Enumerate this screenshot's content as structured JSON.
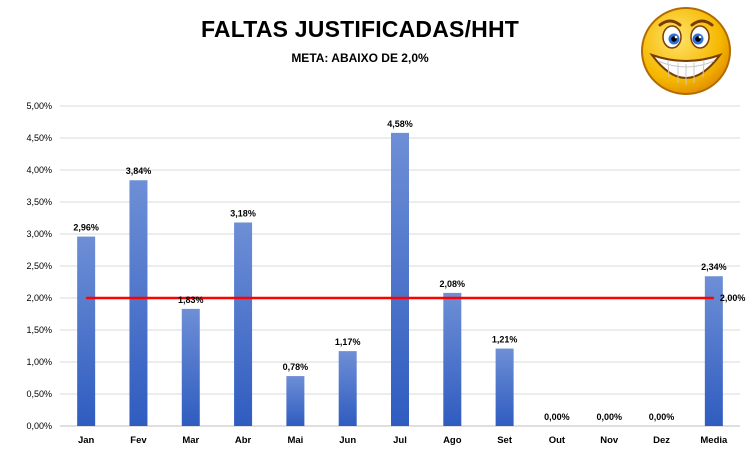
{
  "header": {
    "title": "FALTAS JUSTIFICADAS/HHT",
    "subtitle": "META: ABAIXO DE 2,0%"
  },
  "icon": {
    "name": "grinning-smiley-icon",
    "face_color": "#f5b800",
    "outline_color": "#b36b00"
  },
  "chart_data": {
    "type": "bar",
    "categories": [
      "Jan",
      "Fev",
      "Mar",
      "Abr",
      "Mai",
      "Jun",
      "Jul",
      "Ago",
      "Set",
      "Out",
      "Nov",
      "Dez",
      "Media"
    ],
    "values": [
      2.96,
      3.84,
      1.83,
      3.18,
      0.78,
      1.17,
      4.58,
      2.08,
      1.21,
      0.0,
      0.0,
      0.0,
      2.34
    ],
    "data_labels": [
      "2,96%",
      "3,84%",
      "1,83%",
      "3,18%",
      "0,78%",
      "1,17%",
      "4,58%",
      "2,08%",
      "1,21%",
      "0,00%",
      "0,00%",
      "0,00%",
      "2,34%"
    ],
    "ylim": [
      0,
      5
    ],
    "yticks": [
      0,
      0.5,
      1,
      1.5,
      2,
      2.5,
      3,
      3.5,
      4,
      4.5,
      5
    ],
    "ytick_labels": [
      "0,00%",
      "0,50%",
      "1,00%",
      "1,50%",
      "2,00%",
      "2,50%",
      "3,00%",
      "3,50%",
      "4,00%",
      "4,50%",
      "5,00%"
    ],
    "grid": true,
    "target": {
      "value": 2.0,
      "label": "2,00%",
      "color": "#ff0000"
    },
    "bar_color_top": "#6e8fd6",
    "bar_color_bottom": "#2f5cc0"
  }
}
